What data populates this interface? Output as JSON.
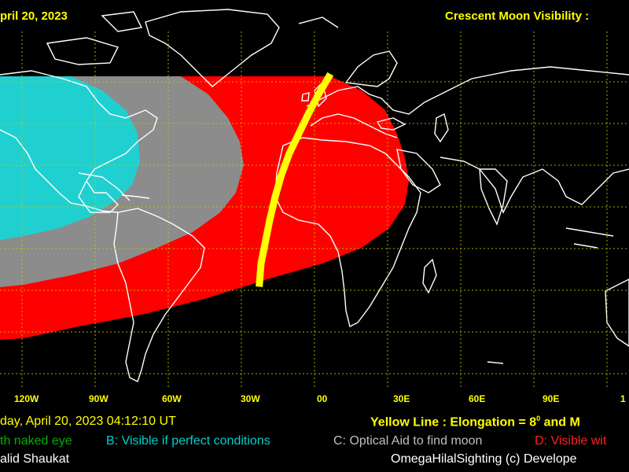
{
  "header": {
    "date_fragment": "pril 20, 2023",
    "title_fragment": "Crescent Moon Visibility : "
  },
  "map": {
    "longitude_labels": [
      "120W",
      "90W",
      "60W",
      "30W",
      "00",
      "30E",
      "60E",
      "90E",
      "1"
    ],
    "colors": {
      "visible_perfect": "#20d0d0",
      "optical_aid": "#8c8c8c",
      "visible_with_aid": "#ff0000",
      "elongation_line": "#ffff00",
      "grid": "#c8c800",
      "coastline": "#ffffff"
    }
  },
  "footer": {
    "datetime_fragment": "day, April 20, 2023  04:12:10  UT",
    "yellow_line_fragment": "Yellow Line : Elongation = 8",
    "yellow_line_degree": "0",
    "yellow_line_tail": " and M",
    "legend_a_fragment": "th naked eye",
    "legend_b": "B: Visible if perfect conditions",
    "legend_c": "C: Optical Aid to find moon",
    "legend_d_fragment": "D: Visible wit",
    "author_fragment": "alid Shaukat",
    "credit_fragment": "OmegaHilalSighting  (c)  Develope"
  }
}
